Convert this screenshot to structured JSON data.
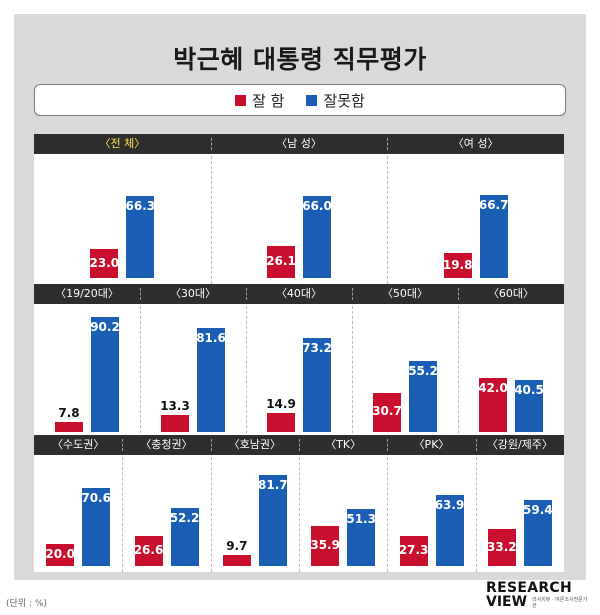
{
  "title": "박근혜 대통령 직무평가",
  "legend": {
    "good_label": "잘 함",
    "bad_label": "잘못함"
  },
  "colors": {
    "good": "#c8102e",
    "bad": "#1a5fb4"
  },
  "unit_note": "(단위 : %)",
  "logo": {
    "line1": "RESEARCH",
    "line2": "VIEW",
    "tagline": "리서치뷰 · 여론조사전문기관"
  },
  "chart_data": [
    {
      "type": "bar",
      "title": "",
      "categories": [
        "〈전 체〉",
        "〈남 성〉",
        "〈여 성〉"
      ],
      "series": [
        {
          "name": "잘 함",
          "values": [
            23.0,
            26.1,
            19.8
          ]
        },
        {
          "name": "잘못함",
          "values": [
            66.3,
            66.0,
            66.7
          ]
        }
      ],
      "ylim": [
        0,
        100
      ],
      "highlight_index": 0
    },
    {
      "type": "bar",
      "title": "",
      "categories": [
        "〈19/20대〉",
        "〈30대〉",
        "〈40대〉",
        "〈50대〉",
        "〈60대〉"
      ],
      "series": [
        {
          "name": "잘 함",
          "values": [
            7.8,
            13.3,
            14.9,
            30.7,
            42.0
          ]
        },
        {
          "name": "잘못함",
          "values": [
            90.2,
            81.6,
            73.2,
            55.2,
            40.5
          ]
        }
      ],
      "ylim": [
        0,
        100
      ]
    },
    {
      "type": "bar",
      "title": "",
      "categories": [
        "〈수도권〉",
        "〈충청권〉",
        "〈호남권〉",
        "〈TK〉",
        "〈PK〉",
        "〈강원/제주〉"
      ],
      "series": [
        {
          "name": "잘 함",
          "values": [
            20.0,
            26.6,
            9.7,
            35.9,
            27.3,
            33.2
          ]
        },
        {
          "name": "잘못함",
          "values": [
            70.6,
            52.2,
            81.7,
            51.3,
            63.9,
            59.4
          ]
        }
      ],
      "ylim": [
        0,
        100
      ]
    }
  ]
}
